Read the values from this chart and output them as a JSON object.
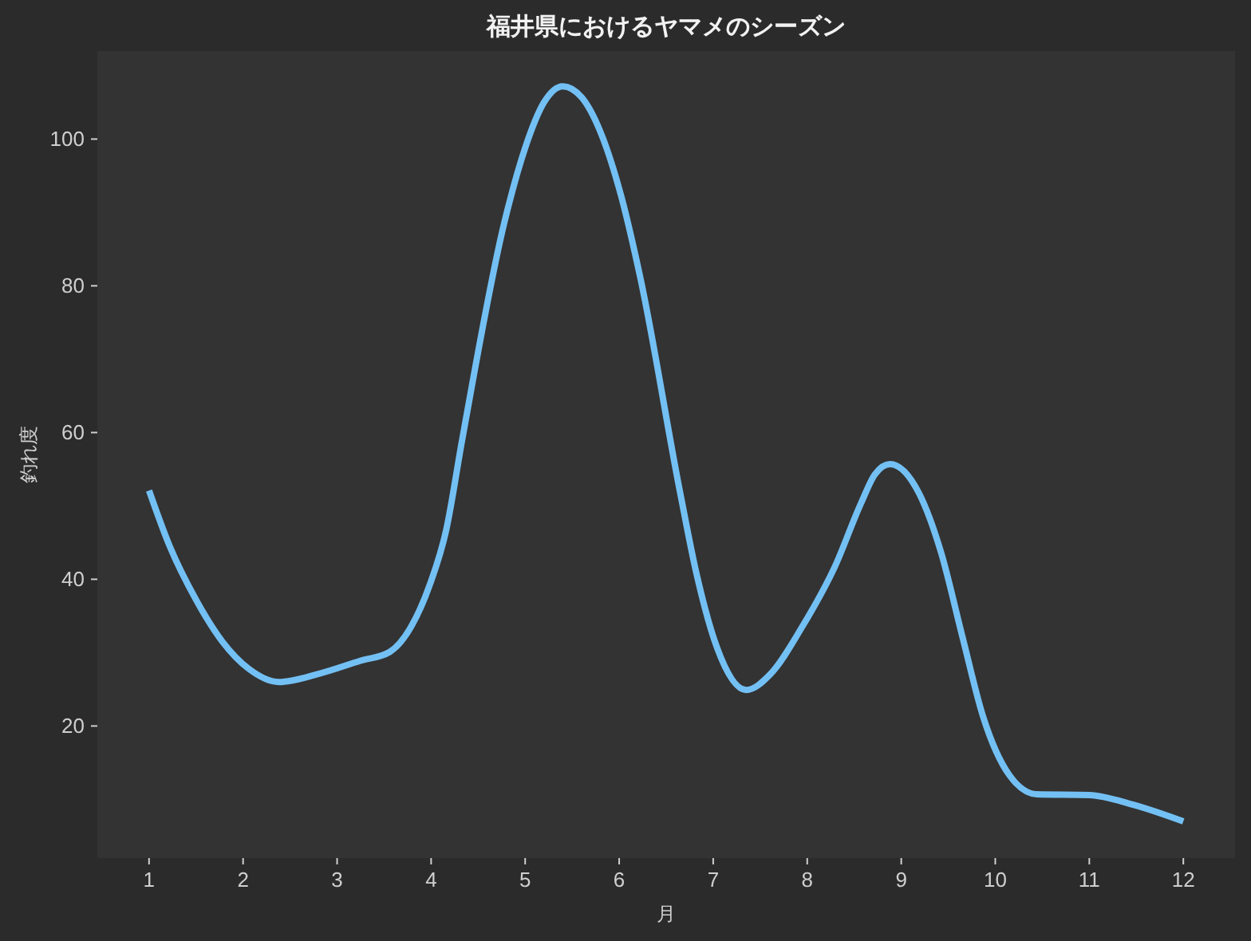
{
  "chart_data": {
    "type": "line",
    "title": "福井県におけるヤマメのシーズン",
    "xlabel": "月",
    "ylabel": "釣れ度",
    "x": [
      1,
      1.22,
      1.5,
      1.78,
      2.06,
      2.38,
      2.8,
      3.25,
      3.56,
      3.79,
      3.99,
      4.16,
      4.33,
      4.78,
      5.0,
      5.2,
      5.4,
      5.6,
      5.8,
      6.02,
      6.22,
      6.65,
      6.82,
      7.04,
      7.35,
      7.61,
      7.95,
      8.29,
      8.57,
      8.72,
      8.88,
      9.19,
      9.42,
      9.65,
      9.87,
      10.15,
      10.44,
      11.0,
      11.46,
      12
    ],
    "series": [
      {
        "color": "#73c0f4",
        "values": [
          52.1,
          44.5,
          37.2,
          31.5,
          27.8,
          26.0,
          27.1,
          28.9,
          30.1,
          33.6,
          39.4,
          46.7,
          59.0,
          88.7,
          98.8,
          105.0,
          107.2,
          105.7,
          101.0,
          92.3,
          81.4,
          51.7,
          40.9,
          30.7,
          24.9,
          27.1,
          33.6,
          41.6,
          50.3,
          54.3,
          55.7,
          51.7,
          43.8,
          32.2,
          21.3,
          13.3,
          10.7,
          10.6,
          9.3,
          7.0
        ]
      }
    ],
    "xlim": [
      0.45,
      12.55
    ],
    "ylim": [
      2,
      112
    ],
    "xticks": [
      1,
      2,
      3,
      4,
      5,
      6,
      7,
      8,
      9,
      10,
      11,
      12
    ],
    "yticks": [
      20,
      40,
      60,
      80,
      100
    ],
    "line_style": "solid"
  }
}
